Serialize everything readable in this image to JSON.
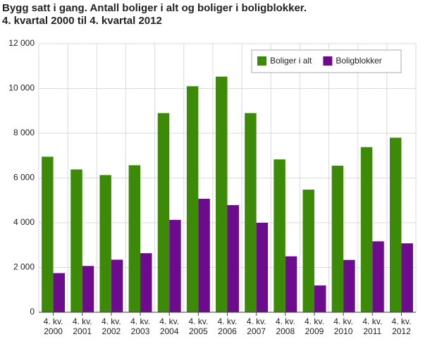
{
  "chart_data": {
    "type": "bar",
    "title": "Bygg satt i gang. Antall boliger i alt og boliger i boligblokker.",
    "subtitle": "4. kvartal 2000 til 4. kvartal 2012",
    "categories": [
      "4. kv. 2000",
      "4. kv. 2001",
      "4. kv. 2002",
      "4. kv. 2003",
      "4. kv. 2004",
      "4. kv. 2005",
      "4. kv. 2006",
      "4. kv. 2007",
      "4. kv. 2008",
      "4. kv. 2009",
      "4. kv. 2010",
      "4. kv. 2011",
      "4. kv. 2012"
    ],
    "series": [
      {
        "name": "Boliger i alt",
        "color": "#3d8a08",
        "values": [
          6950,
          6380,
          6130,
          6570,
          8900,
          10100,
          10530,
          8900,
          6830,
          5480,
          6550,
          7380,
          7800
        ]
      },
      {
        "name": "Boligblokker",
        "color": "#6c0c8c",
        "values": [
          1750,
          2070,
          2350,
          2640,
          4130,
          5070,
          4790,
          4000,
          2500,
          1200,
          2340,
          3170,
          3080
        ]
      }
    ],
    "ylim": [
      0,
      12000
    ],
    "yticks": [
      0,
      {
        "value": 2000,
        "label": "2 000"
      },
      {
        "value": 4000,
        "label": "4 000"
      },
      {
        "value": 6000,
        "label": "6 000"
      },
      {
        "value": 8000,
        "label": "8 000"
      },
      {
        "value": 10000,
        "label": "10 000"
      },
      {
        "value": 12000,
        "label": "12 000"
      }
    ],
    "grid": true,
    "legend": "top-right"
  }
}
